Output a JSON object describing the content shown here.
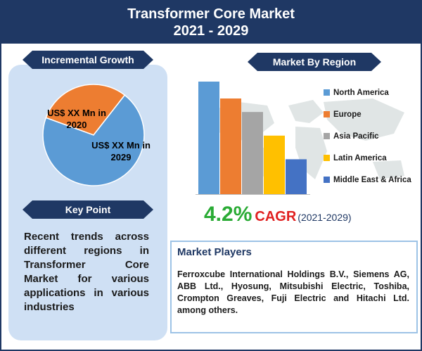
{
  "header": {
    "title": "Transformer Core Market",
    "years": "2021 - 2029"
  },
  "incremental_growth": {
    "title": "Incremental Growth",
    "slice_orange_label": "US$ XX Mn in 2020",
    "slice_blue_label": "US$ XX Mn in 2029"
  },
  "key_point": {
    "title": "Key Point",
    "text": "Recent trends across different regions in Transformer Core Market for various applications in various industries"
  },
  "market_by_region": {
    "title": "Market By Region"
  },
  "cagr": {
    "value": "4.2%",
    "label": "CAGR",
    "period": "(2021-2029)"
  },
  "market_players": {
    "title": "Market Players",
    "text": "Ferroxcube International Holdings B.V., Siemens AG, ABB Ltd., Hyosung, Mitsubishi Electric, Toshiba, Crompton Greaves, Fuji Electric and Hitachi Ltd. among others."
  },
  "colors": {
    "header_bg": "#1f3864",
    "panel_bg": "#cfe0f4",
    "pie_blue": "#5b9bd5",
    "pie_orange": "#ed7d31",
    "cagr_green": "#2aab35",
    "cagr_red": "#e02020"
  },
  "chart_data": [
    {
      "type": "pie",
      "title": "Incremental Growth",
      "slices": [
        {
          "label": "US$ XX Mn in 2020",
          "value": 30,
          "color": "#ed7d31"
        },
        {
          "label": "US$ XX Mn in 2029",
          "value": 70,
          "color": "#5b9bd5"
        }
      ]
    },
    {
      "type": "bar",
      "title": "Market By Region",
      "categories": [
        "North America",
        "Europe",
        "Asia Pacific",
        "Latin America",
        "Middle East & Africa"
      ],
      "values": [
        100,
        85,
        73,
        52,
        31
      ],
      "colors": [
        "#5b9bd5",
        "#ed7d31",
        "#a5a5a5",
        "#ffc000",
        "#4472c4"
      ],
      "ylim": [
        0,
        100
      ],
      "grid": false,
      "legend": "right"
    }
  ]
}
